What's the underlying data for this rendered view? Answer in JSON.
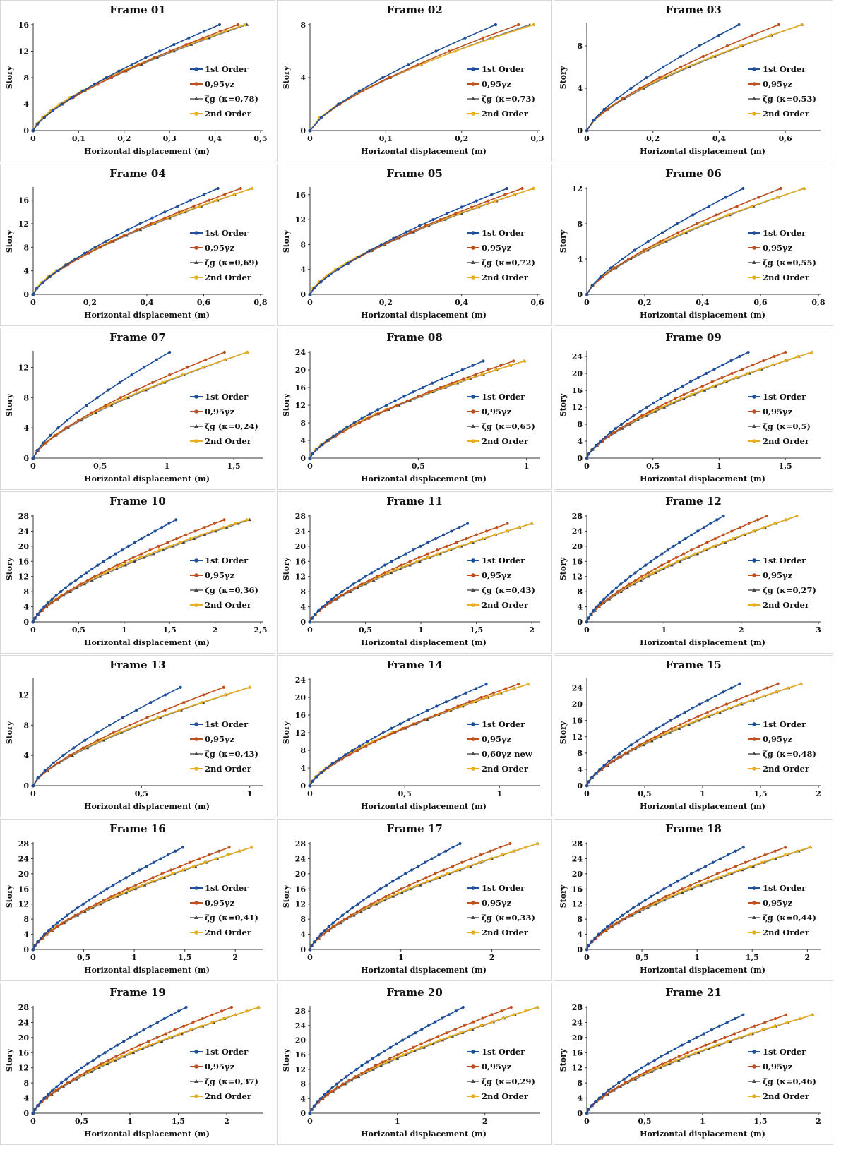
{
  "colors": {
    "first_order": "#1f4e9a",
    "gamma": "#c0501e",
    "zeta": "#7f7f7f",
    "second_order": "#e8b020"
  },
  "chart_data": [
    {
      "type": "line",
      "title": "Frame 01",
      "xlabel": "Horizontal displacement (m)",
      "ylabel": "Story",
      "stories": 16,
      "xlim": [
        0,
        0.5
      ],
      "xticks": [
        "0",
        "0,1",
        "0,2",
        "0,3",
        "0,4",
        "0,5"
      ],
      "ylim": [
        0,
        16
      ],
      "yticks": [
        "0",
        "4",
        "8",
        "12",
        "16"
      ],
      "series": [
        {
          "name": "1st Order",
          "max_disp": 0.41,
          "marker": "circle"
        },
        {
          "name": "0,95γz",
          "max_disp": 0.45,
          "marker": "circle"
        },
        {
          "name": "ζg (κ=0,78)",
          "max_disp": 0.47,
          "marker": "triangle"
        },
        {
          "name": "2nd Order",
          "max_disp": 0.465,
          "marker": "circle"
        }
      ]
    },
    {
      "type": "line",
      "title": "Frame 02",
      "xlabel": "Horizontal displacement (m)",
      "ylabel": "Story",
      "stories": 8,
      "xlim": [
        0,
        0.3
      ],
      "xticks": [
        "0",
        "0,1",
        "0,2",
        "0,3"
      ],
      "ylim": [
        0,
        8
      ],
      "yticks": [
        "0",
        "4",
        "8"
      ],
      "series": [
        {
          "name": "1st Order",
          "max_disp": 0.245,
          "marker": "circle"
        },
        {
          "name": "0,95γz",
          "max_disp": 0.275,
          "marker": "circle"
        },
        {
          "name": "ζg (κ=0,73)",
          "max_disp": 0.29,
          "marker": "triangle"
        },
        {
          "name": "2nd Order",
          "max_disp": 0.295,
          "marker": "circle"
        }
      ]
    },
    {
      "type": "line",
      "title": "Frame 03",
      "xlabel": "Horizontal displacement (m)",
      "ylabel": "Story",
      "stories": 10,
      "xlim": [
        0,
        0.7
      ],
      "xticks": [
        "0",
        "0,2",
        "0,4",
        "0,6"
      ],
      "ylim": [
        0,
        10
      ],
      "yticks": [
        "0",
        "4",
        "8"
      ],
      "series": [
        {
          "name": "1st Order",
          "max_disp": 0.46,
          "marker": "circle"
        },
        {
          "name": "0,95γz",
          "max_disp": 0.58,
          "marker": "circle"
        },
        {
          "name": "ζg (κ=0,53)",
          "max_disp": 0.65,
          "marker": "triangle"
        },
        {
          "name": "2nd Order",
          "max_disp": 0.65,
          "marker": "circle"
        }
      ]
    },
    {
      "type": "line",
      "title": "Frame 04",
      "xlabel": "Horizontal displacement (m)",
      "ylabel": "Story",
      "stories": 18,
      "xlim": [
        0,
        0.8
      ],
      "xticks": [
        "0",
        "0,2",
        "0,4",
        "0,6",
        "0,8"
      ],
      "ylim": [
        0,
        18
      ],
      "yticks": [
        "0",
        "4",
        "8",
        "12",
        "16"
      ],
      "series": [
        {
          "name": "1st Order",
          "max_disp": 0.65,
          "marker": "circle"
        },
        {
          "name": "0,95γz",
          "max_disp": 0.73,
          "marker": "circle"
        },
        {
          "name": "ζg (κ=0,69)",
          "max_disp": 0.77,
          "marker": "triangle"
        },
        {
          "name": "2nd Order",
          "max_disp": 0.77,
          "marker": "circle"
        }
      ]
    },
    {
      "type": "line",
      "title": "Frame 05",
      "xlabel": "Horizontal displacement (m)",
      "ylabel": "Story",
      "stories": 17,
      "xlim": [
        0,
        0.6
      ],
      "xticks": [
        "0",
        "0,2",
        "0,4",
        "0,6"
      ],
      "ylim": [
        0,
        17
      ],
      "yticks": [
        "0",
        "4",
        "8",
        "12",
        "16"
      ],
      "series": [
        {
          "name": "1st Order",
          "max_disp": 0.52,
          "marker": "circle"
        },
        {
          "name": "0,95γz",
          "max_disp": 0.56,
          "marker": "circle"
        },
        {
          "name": "ζg (κ=0,72)",
          "max_disp": 0.59,
          "marker": "triangle"
        },
        {
          "name": "2nd Order",
          "max_disp": 0.59,
          "marker": "circle"
        }
      ]
    },
    {
      "type": "line",
      "title": "Frame 06",
      "xlabel": "Horizontal displacement (m)",
      "ylabel": "Story",
      "stories": 12,
      "xlim": [
        0,
        0.8
      ],
      "xticks": [
        "0",
        "0,2",
        "0,4",
        "0,6",
        "0,8"
      ],
      "ylim": [
        0,
        12
      ],
      "yticks": [
        "0",
        "4",
        "8",
        "12"
      ],
      "series": [
        {
          "name": "1st Order",
          "max_disp": 0.54,
          "marker": "circle"
        },
        {
          "name": "0,95γz",
          "max_disp": 0.67,
          "marker": "circle"
        },
        {
          "name": "ζg (κ=0,55)",
          "max_disp": 0.75,
          "marker": "triangle"
        },
        {
          "name": "2nd Order",
          "max_disp": 0.75,
          "marker": "circle"
        }
      ]
    },
    {
      "type": "line",
      "title": "Frame 07",
      "xlabel": "Horizontal displacement (m)",
      "ylabel": "Story",
      "stories": 14,
      "xlim": [
        0,
        1.7
      ],
      "xticks": [
        "0",
        "0,5",
        "1",
        "1,5"
      ],
      "ylim": [
        0,
        14
      ],
      "yticks": [
        "0",
        "4",
        "8",
        "12"
      ],
      "series": [
        {
          "name": "1st Order",
          "max_disp": 1.02,
          "marker": "circle"
        },
        {
          "name": "0,95γz",
          "max_disp": 1.43,
          "marker": "circle"
        },
        {
          "name": "ζg (κ=0,24)",
          "max_disp": 1.6,
          "marker": "triangle"
        },
        {
          "name": "2nd Order",
          "max_disp": 1.6,
          "marker": "circle"
        }
      ]
    },
    {
      "type": "line",
      "title": "Frame 08",
      "xlabel": "Horizontal displacement (m)",
      "ylabel": "Story",
      "stories": 22,
      "xlim": [
        0,
        1.05
      ],
      "xticks": [
        "0",
        "0,5",
        "1"
      ],
      "ylim": [
        0,
        24
      ],
      "yticks": [
        "0",
        "4",
        "8",
        "12",
        "16",
        "20",
        "24"
      ],
      "series": [
        {
          "name": "1st Order",
          "max_disp": 0.8,
          "marker": "circle"
        },
        {
          "name": "0,95γz",
          "max_disp": 0.94,
          "marker": "circle"
        },
        {
          "name": "ζg (κ=0,65)",
          "max_disp": 0.99,
          "marker": "triangle"
        },
        {
          "name": "2nd Order",
          "max_disp": 0.99,
          "marker": "circle"
        }
      ]
    },
    {
      "type": "line",
      "title": "Frame 09",
      "xlabel": "Horizontal displacement (m)",
      "ylabel": "Story",
      "stories": 25,
      "xlim": [
        0,
        1.75
      ],
      "xticks": [
        "0",
        "0,5",
        "1",
        "1,5"
      ],
      "ylim": [
        0,
        25
      ],
      "yticks": [
        "0",
        "4",
        "8",
        "12",
        "16",
        "20",
        "24"
      ],
      "series": [
        {
          "name": "1st Order",
          "max_disp": 1.22,
          "marker": "circle"
        },
        {
          "name": "0,95γz",
          "max_disp": 1.5,
          "marker": "circle"
        },
        {
          "name": "ζg (κ=0,5)",
          "max_disp": 1.7,
          "marker": "triangle"
        },
        {
          "name": "2nd Order",
          "max_disp": 1.7,
          "marker": "circle"
        }
      ]
    },
    {
      "type": "line",
      "title": "Frame 10",
      "xlabel": "Horizontal displacement (m)",
      "ylabel": "Story",
      "stories": 27,
      "xlim": [
        0,
        2.5
      ],
      "xticks": [
        "0",
        "0,5",
        "1",
        "1,5",
        "2",
        "2,5"
      ],
      "ylim": [
        0,
        28
      ],
      "yticks": [
        "0",
        "4",
        "8",
        "12",
        "16",
        "20",
        "24",
        "28"
      ],
      "series": [
        {
          "name": "1st Order",
          "max_disp": 1.57,
          "marker": "circle"
        },
        {
          "name": "0,95γz",
          "max_disp": 2.1,
          "marker": "circle"
        },
        {
          "name": "ζg (κ=0,36)",
          "max_disp": 2.38,
          "marker": "triangle"
        },
        {
          "name": "2nd Order",
          "max_disp": 2.35,
          "marker": "circle"
        }
      ]
    },
    {
      "type": "line",
      "title": "Frame 11",
      "xlabel": "Horizontal displacement (m)",
      "ylabel": "Story",
      "stories": 26,
      "xlim": [
        0,
        2.05
      ],
      "xticks": [
        "0",
        "0,5",
        "1",
        "1,5",
        "2"
      ],
      "ylim": [
        0,
        28
      ],
      "yticks": [
        "0",
        "4",
        "8",
        "12",
        "16",
        "20",
        "24",
        "28"
      ],
      "series": [
        {
          "name": "1st Order",
          "max_disp": 1.42,
          "marker": "circle"
        },
        {
          "name": "0,95γz",
          "max_disp": 1.78,
          "marker": "circle"
        },
        {
          "name": "ζg (κ=0,43)",
          "max_disp": 2.0,
          "marker": "triangle"
        },
        {
          "name": "2nd Order",
          "max_disp": 2.0,
          "marker": "circle"
        }
      ]
    },
    {
      "type": "line",
      "title": "Frame 12",
      "xlabel": "Horizontal displacement (m)",
      "ylabel": "Story",
      "stories": 28,
      "xlim": [
        0,
        3
      ],
      "xticks": [
        "0",
        "1",
        "2",
        "3"
      ],
      "ylim": [
        0,
        28
      ],
      "yticks": [
        "0",
        "4",
        "8",
        "12",
        "16",
        "20",
        "24",
        "28"
      ],
      "series": [
        {
          "name": "1st Order",
          "max_disp": 1.77,
          "marker": "circle"
        },
        {
          "name": "0,95γz",
          "max_disp": 2.33,
          "marker": "circle"
        },
        {
          "name": "ζg (κ=0,27)",
          "max_disp": 2.72,
          "marker": "triangle"
        },
        {
          "name": "2nd Order",
          "max_disp": 2.72,
          "marker": "circle"
        }
      ]
    },
    {
      "type": "line",
      "title": "Frame 13",
      "xlabel": "Horizontal displacement (m)",
      "ylabel": "Story",
      "stories": 13,
      "xlim": [
        0,
        1.05
      ],
      "xticks": [
        "0",
        "0,5",
        "1"
      ],
      "ylim": [
        0,
        14
      ],
      "yticks": [
        "0",
        "4",
        "8",
        "12"
      ],
      "series": [
        {
          "name": "1st Order",
          "max_disp": 0.68,
          "marker": "circle"
        },
        {
          "name": "0,95γz",
          "max_disp": 0.88,
          "marker": "circle"
        },
        {
          "name": "ζg (κ=0,43)",
          "max_disp": 1.0,
          "marker": "triangle"
        },
        {
          "name": "2nd Order",
          "max_disp": 1.0,
          "marker": "circle"
        }
      ]
    },
    {
      "type": "line",
      "title": "Frame 14",
      "xlabel": "Horizontal displacement (m)",
      "ylabel": "Story",
      "stories": 23,
      "xlim": [
        0,
        1.2
      ],
      "xticks": [
        "0",
        "0,5",
        "1"
      ],
      "ylim": [
        0,
        24
      ],
      "yticks": [
        "0",
        "4",
        "8",
        "12",
        "16",
        "20",
        "24"
      ],
      "series": [
        {
          "name": "1st Order",
          "max_disp": 0.93,
          "marker": "circle"
        },
        {
          "name": "0,95γz",
          "max_disp": 1.1,
          "marker": "circle"
        },
        {
          "name": "0,60γz new",
          "max_disp": 1.15,
          "marker": "triangle"
        },
        {
          "name": "2nd Order",
          "max_disp": 1.15,
          "marker": "circle"
        }
      ]
    },
    {
      "type": "line",
      "title": "Frame 15",
      "xlabel": "Horizontal displacement (m)",
      "ylabel": "Story",
      "stories": 25,
      "xlim": [
        0,
        2
      ],
      "xticks": [
        "0",
        "0,5",
        "1",
        "1,5",
        "2"
      ],
      "ylim": [
        0,
        26
      ],
      "yticks": [
        "0",
        "4",
        "8",
        "12",
        "16",
        "20",
        "24"
      ],
      "series": [
        {
          "name": "1st Order",
          "max_disp": 1.32,
          "marker": "circle"
        },
        {
          "name": "0,95γz",
          "max_disp": 1.65,
          "marker": "circle"
        },
        {
          "name": "ζg (κ=0,48)",
          "max_disp": 1.85,
          "marker": "triangle"
        },
        {
          "name": "2nd Order",
          "max_disp": 1.85,
          "marker": "circle"
        }
      ]
    },
    {
      "type": "line",
      "title": "Frame 16",
      "xlabel": "Horizontal displacement (m)",
      "ylabel": "Story",
      "stories": 27,
      "xlim": [
        0,
        2.25
      ],
      "xticks": [
        "0",
        "0,5",
        "1",
        "1,5",
        "2"
      ],
      "ylim": [
        0,
        28
      ],
      "yticks": [
        "0",
        "4",
        "8",
        "12",
        "16",
        "20",
        "24",
        "28"
      ],
      "series": [
        {
          "name": "1st Order",
          "max_disp": 1.48,
          "marker": "circle"
        },
        {
          "name": "0,95γz",
          "max_disp": 1.94,
          "marker": "circle"
        },
        {
          "name": "ζg (κ=0,41)",
          "max_disp": 2.16,
          "marker": "triangle"
        },
        {
          "name": "2nd Order",
          "max_disp": 2.16,
          "marker": "circle"
        }
      ]
    },
    {
      "type": "line",
      "title": "Frame 17",
      "xlabel": "Horizontal displacement (m)",
      "ylabel": "Story",
      "stories": 28,
      "xlim": [
        0,
        2.5
      ],
      "xticks": [
        "0",
        "1",
        "2"
      ],
      "ylim": [
        0,
        28
      ],
      "yticks": [
        "0",
        "4",
        "8",
        "12",
        "16",
        "20",
        "24",
        "28"
      ],
      "series": [
        {
          "name": "1st Order",
          "max_disp": 1.65,
          "marker": "circle"
        },
        {
          "name": "0,95γz",
          "max_disp": 2.2,
          "marker": "circle"
        },
        {
          "name": "ζg (κ=0,33)",
          "max_disp": 2.5,
          "marker": "triangle"
        },
        {
          "name": "2nd Order",
          "max_disp": 2.5,
          "marker": "circle"
        }
      ]
    },
    {
      "type": "line",
      "title": "Frame 18",
      "xlabel": "Horizontal displacement (m)",
      "ylabel": "Story",
      "stories": 27,
      "xlim": [
        0,
        2.1
      ],
      "xticks": [
        "0",
        "0,5",
        "1",
        "1,5",
        "2"
      ],
      "ylim": [
        0,
        28
      ],
      "yticks": [
        "0",
        "4",
        "8",
        "12",
        "16",
        "20",
        "24",
        "28"
      ],
      "series": [
        {
          "name": "1st Order",
          "max_disp": 1.42,
          "marker": "circle"
        },
        {
          "name": "0,95γz",
          "max_disp": 1.8,
          "marker": "circle"
        },
        {
          "name": "ζg (κ=0,44)",
          "max_disp": 2.03,
          "marker": "triangle"
        },
        {
          "name": "2nd Order",
          "max_disp": 2.02,
          "marker": "circle"
        }
      ]
    },
    {
      "type": "line",
      "title": "Frame 19",
      "xlabel": "Horizontal displacement (m)",
      "ylabel": "Story",
      "stories": 28,
      "xlim": [
        0,
        2.35
      ],
      "xticks": [
        "0",
        "0,5",
        "1",
        "1,5",
        "2"
      ],
      "ylim": [
        0,
        28
      ],
      "yticks": [
        "0",
        "4",
        "8",
        "12",
        "16",
        "20",
        "24",
        "28"
      ],
      "series": [
        {
          "name": "1st Order",
          "max_disp": 1.58,
          "marker": "circle"
        },
        {
          "name": "0,95γz",
          "max_disp": 2.05,
          "marker": "circle"
        },
        {
          "name": "ζg (κ=0,37)",
          "max_disp": 2.33,
          "marker": "triangle"
        },
        {
          "name": "2nd Order",
          "max_disp": 2.33,
          "marker": "circle"
        }
      ]
    },
    {
      "type": "line",
      "title": "Frame 20",
      "xlabel": "Horizontal displacement (m)",
      "ylabel": "Story",
      "stories": 29,
      "xlim": [
        0,
        2.6
      ],
      "xticks": [
        "0",
        "1",
        "2"
      ],
      "ylim": [
        0,
        29
      ],
      "yticks": [
        "0",
        "4",
        "8",
        "12",
        "16",
        "20",
        "24",
        "28"
      ],
      "series": [
        {
          "name": "1st Order",
          "max_disp": 1.75,
          "marker": "circle"
        },
        {
          "name": "0,95γz",
          "max_disp": 2.3,
          "marker": "circle"
        },
        {
          "name": "ζg (κ=0,29)",
          "max_disp": 2.6,
          "marker": "triangle"
        },
        {
          "name": "2nd Order",
          "max_disp": 2.6,
          "marker": "circle"
        }
      ]
    },
    {
      "type": "line",
      "title": "Frame 21",
      "xlabel": "Horizontal displacement (m)",
      "ylabel": "Story",
      "stories": 26,
      "xlim": [
        0,
        2
      ],
      "xticks": [
        "0",
        "0,5",
        "1",
        "1,5",
        "2"
      ],
      "ylim": [
        0,
        28
      ],
      "yticks": [
        "0",
        "4",
        "8",
        "12",
        "16",
        "20",
        "24",
        "28"
      ],
      "series": [
        {
          "name": "1st Order",
          "max_disp": 1.35,
          "marker": "circle"
        },
        {
          "name": "0,95γz",
          "max_disp": 1.72,
          "marker": "circle"
        },
        {
          "name": "ζg (κ=0,46)",
          "max_disp": 1.95,
          "marker": "triangle"
        },
        {
          "name": "2nd Order",
          "max_disp": 1.95,
          "marker": "circle"
        }
      ]
    }
  ]
}
